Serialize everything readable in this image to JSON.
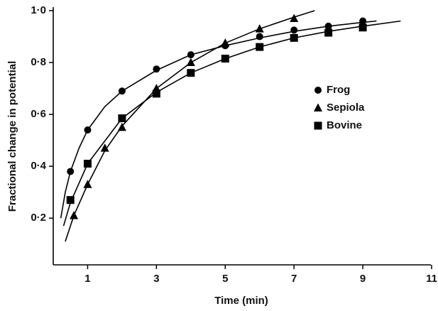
{
  "chart_data": {
    "type": "scatter",
    "x_label": "Time (min)",
    "y_label": "Fractional change in potential",
    "xlim": [
      0,
      11
    ],
    "ylim": [
      0.02,
      1.0
    ],
    "xticks": [
      1,
      3,
      5,
      7,
      9,
      11
    ],
    "yticks": [
      {
        "value": 0.2,
        "label": "0·2"
      },
      {
        "value": 0.4,
        "label": "0·4"
      },
      {
        "value": 0.6,
        "label": "0·6"
      },
      {
        "value": 0.8,
        "label": "0·8"
      },
      {
        "value": 1.0,
        "label": "1·0"
      }
    ],
    "grid": false,
    "legend": "upper right",
    "series": [
      {
        "name": "Frog",
        "color": "#000000",
        "marker": "circle",
        "x": [
          0.5,
          1,
          2,
          3,
          4,
          5,
          6,
          7,
          8,
          9
        ],
        "values": [
          0.38,
          0.54,
          0.69,
          0.775,
          0.83,
          0.865,
          0.9,
          0.925,
          0.94,
          0.96
        ],
        "fit": {
          "x": [
            0.22,
            0.35,
            0.5,
            0.75,
            1,
            1.5,
            2,
            3,
            4,
            5,
            6,
            7,
            8,
            9,
            9.4
          ],
          "values": [
            0.2,
            0.3,
            0.38,
            0.47,
            0.54,
            0.63,
            0.69,
            0.77,
            0.83,
            0.865,
            0.895,
            0.92,
            0.94,
            0.955,
            0.96
          ]
        }
      },
      {
        "name": "Sepiola",
        "color": "#000000",
        "marker": "triangle",
        "x": [
          0.6,
          1,
          1.5,
          2,
          3,
          4,
          5,
          6,
          7
        ],
        "values": [
          0.21,
          0.33,
          0.47,
          0.55,
          0.7,
          0.8,
          0.875,
          0.93,
          0.97
        ],
        "fit": {
          "x": [
            0.35,
            0.6,
            1,
            1.5,
            2,
            3,
            4,
            5,
            6,
            7,
            7.6
          ],
          "values": [
            0.11,
            0.21,
            0.33,
            0.46,
            0.555,
            0.7,
            0.8,
            0.875,
            0.93,
            0.975,
            1.0
          ]
        }
      },
      {
        "name": "Bovine",
        "color": "#000000",
        "marker": "square",
        "x": [
          0.5,
          1,
          2,
          3,
          4,
          5,
          6,
          7,
          8,
          9
        ],
        "values": [
          0.27,
          0.41,
          0.585,
          0.68,
          0.76,
          0.815,
          0.86,
          0.895,
          0.915,
          0.935
        ],
        "fit": {
          "x": [
            0.3,
            0.5,
            1,
            2,
            3,
            4,
            5,
            6,
            7,
            8,
            9,
            10.1
          ],
          "values": [
            0.17,
            0.26,
            0.41,
            0.585,
            0.685,
            0.76,
            0.815,
            0.86,
            0.895,
            0.92,
            0.94,
            0.96
          ]
        }
      }
    ]
  }
}
